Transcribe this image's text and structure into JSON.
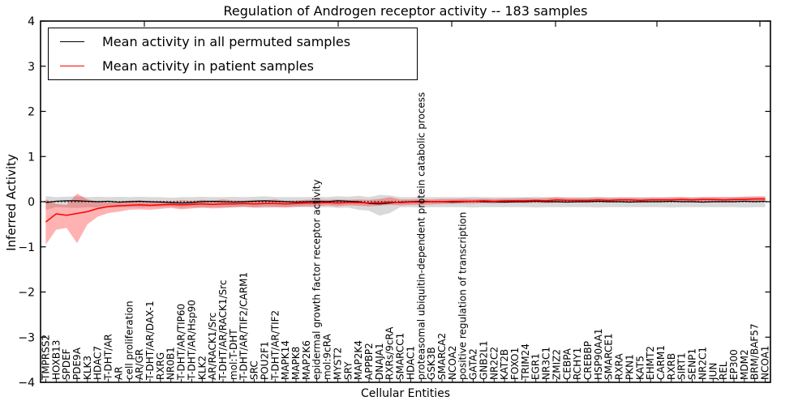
{
  "title": "Regulation of Androgen receptor activity -- 183 samples",
  "xlabel": "Cellular Entities",
  "ylabel": "Inferred Activity",
  "legend": {
    "permuted_label": "Mean activity in all permuted samples",
    "patient_label": "Mean activity in patient samples"
  },
  "colors": {
    "permuted_line": "#000000",
    "patient_line": "#ff0000",
    "permuted_band": "#aaaaaa",
    "patient_band": "#ff0000",
    "zero_line": "#000000",
    "background": "#ffffff"
  },
  "chart_data": {
    "type": "line",
    "title": "Regulation of Androgen receptor activity -- 183 samples",
    "xlabel": "Cellular Entities",
    "ylabel": "Inferred Activity",
    "ylim": [
      -4,
      4
    ],
    "yticks": [
      -4,
      -3,
      -2,
      -1,
      0,
      1,
      2,
      3,
      4
    ],
    "grid": false,
    "zero_line_dotted": true,
    "legend_position": "upper left",
    "categories": [
      "TMPRSS2",
      "HOXB13",
      "SPDEF",
      "PDE9A",
      "KLK3",
      "HDAC7",
      "T-DHT/AR",
      "AR",
      "cell proliferation",
      "AR/GR",
      "T-DHT/AR/DAX-1",
      "RXRG",
      "NR0B1",
      "T-DHT/AR/TIP60",
      "T-DHT/AR/Hsp90",
      "KLK2",
      "AR/RACK1/Src",
      "T-DHT/AR/RACK1/Src",
      "mol:T-DHT",
      "T-DHT/AR/TIF2/CARM1",
      "SRC",
      "POU2F1",
      "T-DHT/AR/TIF2",
      "MAPK14",
      "MAPK8",
      "MAP2K6",
      "epidermal growth factor receptor activity",
      "mol:9cRA",
      "MYST2",
      "SRY",
      "MAP2K4",
      "APPBP2",
      "DNAJA1",
      "RXRs/9cRA",
      "SMARCC1",
      "HDAC1",
      "proteasomal ubiquitin-dependent protein catabolic process",
      "GSK3B",
      "SMARCA2",
      "NCOA2",
      "positive regulation of transcription",
      "GATA2",
      "GNB2L1",
      "NR2C2",
      "KAT2B",
      "FOXO1",
      "TRIM24",
      "EGR1",
      "NR3C1",
      "ZMIZ2",
      "CEBPA",
      "RCHY1",
      "CREBBP",
      "HSP90AA1",
      "SMARCE1",
      "RXRA",
      "PKN1",
      "KAT5",
      "EHMT2",
      "CARM1",
      "RXRB",
      "SIRT1",
      "SENP1",
      "NR2C1",
      "JUN",
      "REL",
      "EP300",
      "MDM2",
      "BRM/BAF57",
      "NCOA1"
    ],
    "series": [
      {
        "name": "Mean activity in all permuted samples",
        "color": "#000000",
        "band_color": "#aaaaaa",
        "band_opacity": 0.45,
        "values": [
          -0.02,
          0.01,
          0.02,
          0.02,
          0.01,
          0.0,
          0.01,
          -0.01,
          0.0,
          0.01,
          0.0,
          -0.01,
          -0.02,
          -0.03,
          -0.02,
          0.0,
          0.01,
          0.0,
          -0.01,
          0.0,
          0.01,
          0.02,
          0.01,
          0.0,
          -0.01,
          0.0,
          0.01,
          0.0,
          0.02,
          0.01,
          0.0,
          -0.04,
          -0.05,
          -0.03,
          -0.01,
          0.0,
          0.01,
          0.0,
          0.0,
          -0.01,
          0.0,
          0.01,
          0.0,
          0.0,
          -0.01,
          0.0,
          0.0,
          0.01,
          0.0,
          0.0,
          -0.01,
          0.0,
          0.0,
          0.01,
          0.0,
          0.0,
          -0.01,
          0.0,
          0.0,
          0.0,
          0.01,
          0.0,
          0.0,
          -0.01,
          0.0,
          0.0,
          0.0,
          0.01,
          0.0,
          0.01
        ],
        "band_upper": [
          0.12,
          0.1,
          0.11,
          0.12,
          0.1,
          0.11,
          0.1,
          0.11,
          0.1,
          0.11,
          0.1,
          0.1,
          0.09,
          0.1,
          0.1,
          0.11,
          0.1,
          0.1,
          0.11,
          0.1,
          0.11,
          0.12,
          0.1,
          0.1,
          0.1,
          0.1,
          0.11,
          0.1,
          0.12,
          0.11,
          0.13,
          0.1,
          0.15,
          0.14,
          0.1,
          0.1,
          0.11,
          0.1,
          0.1,
          0.1,
          0.1,
          0.11,
          0.1,
          0.1,
          0.1,
          0.1,
          0.1,
          0.11,
          0.1,
          0.1,
          0.1,
          0.1,
          0.1,
          0.11,
          0.1,
          0.1,
          0.1,
          0.1,
          0.1,
          0.1,
          0.11,
          0.1,
          0.1,
          0.1,
          0.1,
          0.1,
          0.1,
          0.11,
          0.1,
          0.1
        ],
        "band_lower": [
          -0.18,
          -0.12,
          -0.13,
          -0.14,
          -0.12,
          -0.13,
          -0.12,
          -0.13,
          -0.12,
          -0.13,
          -0.12,
          -0.12,
          -0.11,
          -0.14,
          -0.12,
          -0.13,
          -0.12,
          -0.12,
          -0.13,
          -0.12,
          -0.13,
          -0.14,
          -0.12,
          -0.12,
          -0.12,
          -0.12,
          -0.13,
          -0.12,
          -0.14,
          -0.13,
          -0.18,
          -0.2,
          -0.31,
          -0.25,
          -0.12,
          -0.12,
          -0.13,
          -0.12,
          -0.12,
          -0.12,
          -0.12,
          -0.13,
          -0.12,
          -0.12,
          -0.12,
          -0.12,
          -0.12,
          -0.13,
          -0.12,
          -0.12,
          -0.12,
          -0.12,
          -0.12,
          -0.13,
          -0.12,
          -0.12,
          -0.12,
          -0.12,
          -0.12,
          -0.12,
          -0.13,
          -0.12,
          -0.12,
          -0.12,
          -0.12,
          -0.12,
          -0.12,
          -0.13,
          -0.12,
          -0.12
        ]
      },
      {
        "name": "Mean activity in patient samples",
        "color": "#ff0000",
        "band_color": "#ff0000",
        "band_opacity": 0.3,
        "values": [
          -0.45,
          -0.27,
          -0.3,
          -0.26,
          -0.22,
          -0.15,
          -0.11,
          -0.09,
          -0.08,
          -0.07,
          -0.08,
          -0.07,
          -0.06,
          -0.07,
          -0.06,
          -0.05,
          -0.06,
          -0.05,
          -0.05,
          -0.04,
          -0.05,
          -0.04,
          -0.04,
          -0.05,
          -0.04,
          -0.03,
          -0.03,
          -0.02,
          -0.03,
          -0.02,
          -0.02,
          -0.03,
          -0.02,
          -0.01,
          -0.02,
          -0.01,
          -0.01,
          0.0,
          0.0,
          0.01,
          0.01,
          0.01,
          0.02,
          0.01,
          0.02,
          0.02,
          0.02,
          0.03,
          0.02,
          0.04,
          0.03,
          0.03,
          0.03,
          0.04,
          0.03,
          0.04,
          0.04,
          0.03,
          0.04,
          0.04,
          0.04,
          0.05,
          0.04,
          0.05,
          0.05,
          0.04,
          0.05,
          0.05,
          0.06,
          0.06
        ],
        "band_upper": [
          0.05,
          -0.05,
          -0.07,
          0.18,
          0.05,
          0.0,
          -0.02,
          0.0,
          0.02,
          0.03,
          0.0,
          0.02,
          0.01,
          0.03,
          0.02,
          0.04,
          0.02,
          0.05,
          0.03,
          0.02,
          0.04,
          0.03,
          0.05,
          0.02,
          0.03,
          0.04,
          0.05,
          0.04,
          0.05,
          0.04,
          0.05,
          0.04,
          0.06,
          0.1,
          0.05,
          0.05,
          0.06,
          0.05,
          0.06,
          0.06,
          0.07,
          0.06,
          0.07,
          0.06,
          0.07,
          0.07,
          0.08,
          0.07,
          0.08,
          0.1,
          0.08,
          0.08,
          0.08,
          0.09,
          0.08,
          0.09,
          0.09,
          0.08,
          0.09,
          0.09,
          0.09,
          0.1,
          0.09,
          0.1,
          0.1,
          0.1,
          0.1,
          0.11,
          0.12,
          0.12
        ],
        "band_lower": [
          -0.95,
          -0.62,
          -0.58,
          -0.92,
          -0.5,
          -0.33,
          -0.25,
          -0.22,
          -0.18,
          -0.17,
          -0.18,
          -0.16,
          -0.14,
          -0.17,
          -0.15,
          -0.13,
          -0.15,
          -0.14,
          -0.12,
          -0.11,
          -0.13,
          -0.11,
          -0.12,
          -0.13,
          -0.11,
          -0.1,
          -0.1,
          -0.08,
          -0.1,
          -0.08,
          -0.09,
          -0.1,
          -0.09,
          -0.07,
          -0.08,
          -0.07,
          -0.07,
          -0.06,
          -0.05,
          -0.05,
          -0.04,
          -0.04,
          -0.03,
          -0.04,
          -0.03,
          -0.03,
          -0.03,
          -0.02,
          -0.03,
          -0.02,
          -0.02,
          -0.02,
          -0.02,
          -0.01,
          -0.02,
          -0.01,
          -0.01,
          -0.02,
          -0.01,
          -0.01,
          -0.01,
          0.0,
          -0.01,
          0.0,
          0.0,
          -0.01,
          0.0,
          0.0,
          0.01,
          0.01
        ]
      }
    ]
  }
}
